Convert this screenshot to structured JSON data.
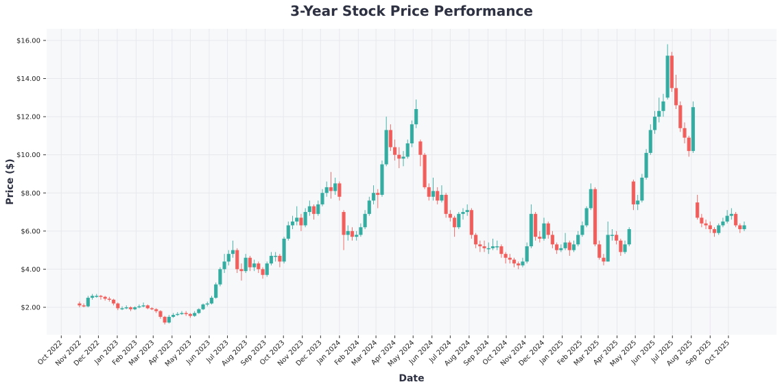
{
  "chart_data": {
    "type": "candlestick",
    "title": "3-Year Stock Price Performance",
    "xlabel": "Date",
    "ylabel": "Price ($)",
    "xlim": [
      "2022-09-07",
      "2025-12-19"
    ],
    "ylim": [
      0.56,
      16.61
    ],
    "y_ticks": [
      2,
      4,
      6,
      8,
      10,
      12,
      14,
      16
    ],
    "y_tick_labels": [
      "$2.00",
      "$4.00",
      "$6.00",
      "$8.00",
      "$10.00",
      "$12.00",
      "$14.00",
      "$16.00"
    ],
    "x_ticks": [
      "2022-10-01",
      "2022-11-01",
      "2022-12-01",
      "2023-01-01",
      "2023-02-01",
      "2023-03-01",
      "2023-04-01",
      "2023-05-01",
      "2023-06-01",
      "2023-07-01",
      "2023-08-01",
      "2023-09-01",
      "2023-10-01",
      "2023-11-01",
      "2023-12-01",
      "2024-01-01",
      "2024-02-01",
      "2024-03-01",
      "2024-04-01",
      "2024-05-01",
      "2024-06-01",
      "2024-07-01",
      "2024-08-01",
      "2024-09-01",
      "2024-10-01",
      "2024-11-01",
      "2024-12-01",
      "2025-01-01",
      "2025-02-01",
      "2025-03-01",
      "2025-04-01",
      "2025-05-01",
      "2025-06-01",
      "2025-07-01",
      "2025-08-01",
      "2025-09-01",
      "2025-10-01"
    ],
    "x_tick_labels": [
      "Oct 2022",
      "Nov 2022",
      "Dec 2022",
      "Jan 2023",
      "Feb 2023",
      "Mar 2023",
      "Apr 2023",
      "May 2023",
      "Jun 2023",
      "Jul 2023",
      "Aug 2023",
      "Sep 2023",
      "Oct 2023",
      "Nov 2023",
      "Dec 2023",
      "Jan 2024",
      "Feb 2024",
      "Mar 2024",
      "Apr 2024",
      "May 2024",
      "Jun 2024",
      "Jul 2024",
      "Aug 2024",
      "Sep 2024",
      "Oct 2024",
      "Nov 2024",
      "Dec 2024",
      "Jan 2025",
      "Feb 2025",
      "Mar 2025",
      "Apr 2025",
      "May 2025",
      "Jun 2025",
      "Jul 2025",
      "Aug 2025",
      "Sep 2025",
      "Oct 2025"
    ],
    "grid": true,
    "colors": {
      "up": "#26a69a",
      "down": "#ef5350",
      "background": "#f7f8fa",
      "text": "#2d3142"
    },
    "columns": [
      "date",
      "open",
      "high",
      "low",
      "close"
    ],
    "candles": [
      [
        "2022-10-31",
        2.2,
        2.3,
        2.0,
        2.1
      ],
      [
        "2022-11-07",
        2.1,
        2.2,
        2.0,
        2.05
      ],
      [
        "2022-11-14",
        2.05,
        2.6,
        2.0,
        2.5
      ],
      [
        "2022-11-21",
        2.5,
        2.7,
        2.4,
        2.6
      ],
      [
        "2022-11-28",
        2.6,
        2.7,
        2.5,
        2.6
      ],
      [
        "2022-12-05",
        2.6,
        2.65,
        2.4,
        2.55
      ],
      [
        "2022-12-12",
        2.55,
        2.6,
        2.35,
        2.45
      ],
      [
        "2022-12-19",
        2.45,
        2.55,
        2.3,
        2.4
      ],
      [
        "2022-12-26",
        2.4,
        2.45,
        2.1,
        2.2
      ],
      [
        "2023-01-02",
        2.2,
        2.25,
        1.85,
        1.95
      ],
      [
        "2023-01-09",
        1.95,
        2.05,
        1.85,
        1.95
      ],
      [
        "2023-01-16",
        1.95,
        2.1,
        1.9,
        2.0
      ],
      [
        "2023-01-23",
        2.0,
        2.05,
        1.8,
        1.9
      ],
      [
        "2023-01-30",
        1.9,
        2.05,
        1.85,
        2.0
      ],
      [
        "2023-02-06",
        2.0,
        2.15,
        1.95,
        2.05
      ],
      [
        "2023-02-13",
        2.05,
        2.25,
        2.0,
        2.1
      ],
      [
        "2023-02-20",
        2.1,
        2.15,
        1.9,
        1.95
      ],
      [
        "2023-02-27",
        1.95,
        2.0,
        1.85,
        1.9
      ],
      [
        "2023-03-06",
        1.9,
        1.95,
        1.7,
        1.8
      ],
      [
        "2023-03-13",
        1.8,
        1.85,
        1.4,
        1.5
      ],
      [
        "2023-03-20",
        1.5,
        1.55,
        1.1,
        1.2
      ],
      [
        "2023-03-27",
        1.2,
        1.6,
        1.15,
        1.5
      ],
      [
        "2023-04-03",
        1.5,
        1.7,
        1.45,
        1.6
      ],
      [
        "2023-04-10",
        1.6,
        1.75,
        1.55,
        1.65
      ],
      [
        "2023-04-17",
        1.65,
        1.8,
        1.6,
        1.7
      ],
      [
        "2023-04-24",
        1.7,
        1.8,
        1.55,
        1.65
      ],
      [
        "2023-05-01",
        1.65,
        1.7,
        1.45,
        1.55
      ],
      [
        "2023-05-08",
        1.55,
        1.8,
        1.5,
        1.7
      ],
      [
        "2023-05-15",
        1.7,
        1.95,
        1.65,
        1.9
      ],
      [
        "2023-05-22",
        1.9,
        2.2,
        1.85,
        2.15
      ],
      [
        "2023-05-29",
        2.15,
        2.3,
        2.05,
        2.2
      ],
      [
        "2023-06-05",
        2.2,
        2.6,
        2.15,
        2.5
      ],
      [
        "2023-06-12",
        2.5,
        3.3,
        2.45,
        3.2
      ],
      [
        "2023-06-19",
        3.2,
        4.1,
        3.1,
        4.0
      ],
      [
        "2023-06-26",
        4.0,
        4.8,
        3.8,
        4.4
      ],
      [
        "2023-07-03",
        4.4,
        5.0,
        4.2,
        4.8
      ],
      [
        "2023-07-10",
        4.8,
        5.5,
        4.6,
        5.0
      ],
      [
        "2023-07-17",
        5.0,
        5.1,
        3.8,
        4.0
      ],
      [
        "2023-07-24",
        4.0,
        4.3,
        3.4,
        3.9
      ],
      [
        "2023-07-31",
        3.9,
        4.8,
        3.8,
        4.6
      ],
      [
        "2023-08-07",
        4.6,
        4.7,
        3.9,
        4.1
      ],
      [
        "2023-08-14",
        4.1,
        4.5,
        3.9,
        4.3
      ],
      [
        "2023-08-21",
        4.3,
        4.4,
        3.8,
        4.0
      ],
      [
        "2023-08-28",
        4.0,
        4.1,
        3.5,
        3.7
      ],
      [
        "2023-09-04",
        3.7,
        4.4,
        3.6,
        4.3
      ],
      [
        "2023-09-11",
        4.3,
        4.9,
        4.2,
        4.7
      ],
      [
        "2023-09-18",
        4.7,
        4.9,
        4.4,
        4.7
      ],
      [
        "2023-09-25",
        4.7,
        4.8,
        4.1,
        4.4
      ],
      [
        "2023-10-02",
        4.4,
        5.7,
        4.3,
        5.6
      ],
      [
        "2023-10-09",
        5.6,
        6.5,
        5.5,
        6.3
      ],
      [
        "2023-10-16",
        6.3,
        6.8,
        6.1,
        6.5
      ],
      [
        "2023-10-23",
        6.5,
        7.3,
        6.3,
        6.7
      ],
      [
        "2023-10-30",
        6.7,
        6.9,
        6.0,
        6.3
      ],
      [
        "2023-11-06",
        6.3,
        7.2,
        6.2,
        7.0
      ],
      [
        "2023-11-13",
        7.0,
        7.6,
        6.8,
        7.3
      ],
      [
        "2023-11-20",
        7.3,
        7.4,
        6.6,
        6.9
      ],
      [
        "2023-11-27",
        6.9,
        7.6,
        6.8,
        7.4
      ],
      [
        "2023-12-04",
        7.4,
        8.2,
        7.3,
        8.0
      ],
      [
        "2023-12-11",
        8.0,
        8.6,
        7.8,
        8.3
      ],
      [
        "2023-12-18",
        8.3,
        9.1,
        7.7,
        8.1
      ],
      [
        "2023-12-25",
        8.1,
        8.8,
        7.9,
        8.5
      ],
      [
        "2024-01-01",
        8.5,
        8.6,
        7.6,
        7.8
      ],
      [
        "2024-01-08",
        7.0,
        7.1,
        5.0,
        5.8
      ],
      [
        "2024-01-15",
        5.8,
        6.3,
        5.5,
        6.0
      ],
      [
        "2024-01-22",
        6.0,
        6.2,
        5.5,
        5.7
      ],
      [
        "2024-01-29",
        5.7,
        6.0,
        5.5,
        5.8
      ],
      [
        "2024-02-05",
        5.8,
        6.4,
        5.7,
        6.2
      ],
      [
        "2024-02-12",
        6.2,
        7.1,
        6.1,
        6.9
      ],
      [
        "2024-02-19",
        6.9,
        7.8,
        6.8,
        7.6
      ],
      [
        "2024-02-26",
        7.6,
        8.4,
        7.4,
        8.0
      ],
      [
        "2024-03-04",
        8.0,
        8.2,
        7.2,
        7.9
      ],
      [
        "2024-03-11",
        7.9,
        9.7,
        7.8,
        9.5
      ],
      [
        "2024-03-18",
        9.5,
        12.0,
        9.4,
        11.3
      ],
      [
        "2024-03-25",
        11.3,
        11.6,
        10.2,
        10.4
      ],
      [
        "2024-04-01",
        10.4,
        10.8,
        9.7,
        10.0
      ],
      [
        "2024-04-08",
        10.0,
        10.4,
        9.3,
        9.8
      ],
      [
        "2024-04-15",
        9.8,
        10.2,
        9.4,
        9.9
      ],
      [
        "2024-04-22",
        9.9,
        10.8,
        9.8,
        10.6
      ],
      [
        "2024-04-29",
        10.6,
        11.8,
        10.4,
        11.6
      ],
      [
        "2024-05-06",
        11.6,
        12.9,
        11.4,
        12.4
      ],
      [
        "2024-05-13",
        10.7,
        10.8,
        9.4,
        10.0
      ],
      [
        "2024-05-20",
        10.0,
        10.1,
        8.2,
        8.3
      ],
      [
        "2024-05-27",
        8.3,
        8.5,
        7.6,
        7.8
      ],
      [
        "2024-06-03",
        7.8,
        8.8,
        7.6,
        8.1
      ],
      [
        "2024-06-10",
        8.1,
        8.3,
        7.4,
        7.6
      ],
      [
        "2024-06-17",
        7.6,
        8.4,
        7.5,
        7.9
      ],
      [
        "2024-06-24",
        7.9,
        8.0,
        6.7,
        6.9
      ],
      [
        "2024-07-01",
        6.9,
        7.1,
        6.5,
        6.7
      ],
      [
        "2024-07-08",
        6.7,
        6.8,
        5.7,
        6.2
      ],
      [
        "2024-07-15",
        6.2,
        7.0,
        6.1,
        6.9
      ],
      [
        "2024-07-22",
        6.9,
        7.2,
        6.6,
        7.0
      ],
      [
        "2024-07-29",
        7.0,
        7.4,
        6.8,
        7.1
      ],
      [
        "2024-08-05",
        7.1,
        7.2,
        5.6,
        5.8
      ],
      [
        "2024-08-12",
        5.8,
        5.9,
        5.1,
        5.3
      ],
      [
        "2024-08-19",
        5.3,
        5.5,
        4.9,
        5.2
      ],
      [
        "2024-08-26",
        5.2,
        5.5,
        4.9,
        5.1
      ],
      [
        "2024-09-02",
        5.1,
        5.4,
        4.8,
        5.1
      ],
      [
        "2024-09-09",
        5.1,
        5.6,
        5.0,
        5.2
      ],
      [
        "2024-09-16",
        5.2,
        5.5,
        5.0,
        5.2
      ],
      [
        "2024-09-23",
        5.2,
        5.3,
        4.6,
        4.8
      ],
      [
        "2024-09-30",
        4.8,
        4.9,
        4.3,
        4.6
      ],
      [
        "2024-10-07",
        4.6,
        4.8,
        4.3,
        4.5
      ],
      [
        "2024-10-14",
        4.5,
        4.6,
        4.1,
        4.3
      ],
      [
        "2024-10-21",
        4.3,
        4.4,
        4.0,
        4.2
      ],
      [
        "2024-10-28",
        4.2,
        4.6,
        4.1,
        4.4
      ],
      [
        "2024-11-04",
        4.4,
        5.4,
        4.3,
        5.2
      ],
      [
        "2024-11-11",
        5.2,
        7.4,
        5.1,
        6.9
      ],
      [
        "2024-11-18",
        6.9,
        7.0,
        5.5,
        5.7
      ],
      [
        "2024-11-25",
        5.7,
        6.0,
        5.4,
        5.6
      ],
      [
        "2024-12-02",
        5.6,
        6.7,
        5.5,
        6.4
      ],
      [
        "2024-12-09",
        6.4,
        6.5,
        5.6,
        5.8
      ],
      [
        "2024-12-16",
        5.8,
        6.0,
        5.1,
        5.3
      ],
      [
        "2024-12-23",
        5.3,
        5.4,
        4.8,
        5.0
      ],
      [
        "2024-12-30",
        5.0,
        5.3,
        4.9,
        5.1
      ],
      [
        "2025-01-06",
        5.1,
        5.9,
        5.0,
        5.4
      ],
      [
        "2025-01-13",
        5.4,
        5.5,
        4.7,
        5.0
      ],
      [
        "2025-01-20",
        5.0,
        5.5,
        4.9,
        5.3
      ],
      [
        "2025-01-27",
        5.3,
        6.0,
        5.2,
        5.8
      ],
      [
        "2025-02-03",
        5.8,
        6.5,
        5.7,
        6.3
      ],
      [
        "2025-02-10",
        6.3,
        7.3,
        6.2,
        7.2
      ],
      [
        "2025-02-17",
        7.2,
        8.5,
        7.1,
        8.2
      ],
      [
        "2025-02-24",
        8.2,
        8.3,
        5.2,
        5.3
      ],
      [
        "2025-03-03",
        5.3,
        5.5,
        4.5,
        4.6
      ],
      [
        "2025-03-10",
        4.6,
        4.8,
        4.2,
        4.4
      ],
      [
        "2025-03-17",
        4.4,
        6.5,
        4.4,
        5.8
      ],
      [
        "2025-03-24",
        5.8,
        6.1,
        5.5,
        5.8
      ],
      [
        "2025-03-31",
        5.8,
        6.0,
        5.3,
        5.5
      ],
      [
        "2025-04-07",
        5.5,
        5.6,
        4.7,
        4.9
      ],
      [
        "2025-04-14",
        4.9,
        5.5,
        4.8,
        5.3
      ],
      [
        "2025-04-21",
        5.3,
        6.2,
        5.2,
        6.1
      ],
      [
        "2025-04-28",
        8.6,
        8.7,
        7.1,
        7.4
      ],
      [
        "2025-05-05",
        7.4,
        7.9,
        7.1,
        7.6
      ],
      [
        "2025-05-12",
        7.6,
        9.0,
        7.5,
        8.8
      ],
      [
        "2025-05-19",
        8.8,
        10.3,
        8.7,
        10.1
      ],
      [
        "2025-05-26",
        10.1,
        11.6,
        10.0,
        11.3
      ],
      [
        "2025-06-02",
        11.3,
        12.3,
        11.1,
        12.0
      ],
      [
        "2025-06-09",
        12.0,
        13.0,
        11.7,
        12.3
      ],
      [
        "2025-06-16",
        12.3,
        13.2,
        12.0,
        12.8
      ],
      [
        "2025-06-23",
        13.0,
        15.8,
        12.9,
        15.2
      ],
      [
        "2025-06-30",
        15.2,
        15.4,
        13.3,
        13.5
      ],
      [
        "2025-07-07",
        13.5,
        14.2,
        12.4,
        12.6
      ],
      [
        "2025-07-14",
        12.6,
        12.8,
        11.2,
        11.4
      ],
      [
        "2025-07-21",
        11.4,
        11.7,
        10.6,
        10.9
      ],
      [
        "2025-07-28",
        10.9,
        11.0,
        9.9,
        10.2
      ],
      [
        "2025-08-04",
        10.2,
        12.8,
        10.1,
        12.5
      ],
      [
        "2025-08-11",
        7.5,
        7.9,
        6.6,
        6.7
      ],
      [
        "2025-08-18",
        6.7,
        6.9,
        6.2,
        6.4
      ],
      [
        "2025-08-25",
        6.4,
        6.6,
        6.1,
        6.3
      ],
      [
        "2025-09-01",
        6.3,
        6.5,
        5.9,
        6.1
      ],
      [
        "2025-09-08",
        6.1,
        6.2,
        5.7,
        5.9
      ],
      [
        "2025-09-15",
        5.9,
        6.4,
        5.8,
        6.3
      ],
      [
        "2025-09-22",
        6.3,
        6.7,
        6.2,
        6.5
      ],
      [
        "2025-09-29",
        6.5,
        7.1,
        6.4,
        6.8
      ],
      [
        "2025-10-06",
        6.8,
        7.2,
        6.6,
        6.9
      ],
      [
        "2025-10-13",
        6.9,
        7.0,
        6.2,
        6.3
      ],
      [
        "2025-10-20",
        6.3,
        6.4,
        5.9,
        6.1
      ],
      [
        "2025-10-27",
        6.1,
        6.5,
        6.0,
        6.3
      ]
    ]
  }
}
